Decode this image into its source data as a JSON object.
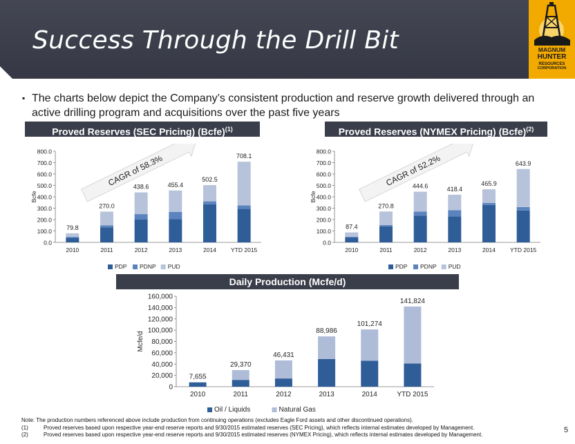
{
  "header": {
    "title": "Success Through the Drill Bit",
    "logo": {
      "line1": "MAGNUM",
      "line2": "HUNTER",
      "line3": "RESOURCES",
      "line4": "CORPORATION"
    }
  },
  "bullet": {
    "icon": "square-bullet-icon",
    "text": "The charts below depict the Company’s consistent production and reserve growth delivered through an active drilling program and acquisitions over the past five years"
  },
  "colors": {
    "band": "#3a3d4a",
    "pdp": "#2f5d98",
    "pdnp": "#5b84bf",
    "pud": "#b7c3da",
    "oil": "#2f5d98",
    "gas": "#aebcd8",
    "logo": "#f2a900"
  },
  "chart_data": [
    {
      "type": "bar",
      "stacked": true,
      "title": "Proved Reserves (SEC Pricing) (Bcfe)",
      "title_sup": "(1)",
      "categories": [
        "2010",
        "2011",
        "2012",
        "2013",
        "2014",
        "YTD 2015"
      ],
      "series": [
        {
          "name": "PDP",
          "values": [
            40,
            130,
            200,
            205,
            335,
            295
          ]
        },
        {
          "name": "PDNP",
          "values": [
            8,
            20,
            48,
            62,
            25,
            30
          ]
        },
        {
          "name": "PUD",
          "values": [
            31.8,
            120,
            190.6,
            188.4,
            142.5,
            383.1
          ]
        }
      ],
      "totals": [
        "79.8",
        "270.0",
        "438.6",
        "455.4",
        "502.5",
        "708.1"
      ],
      "ylabel": "Bcfe",
      "ylim": [
        0,
        800
      ],
      "yticks": [
        "0.0",
        "100.0",
        "200.0",
        "300.0",
        "400.0",
        "500.0",
        "600.0",
        "700.0",
        "800.0"
      ],
      "annotation": "CAGR of 58.3%",
      "legend": [
        "PDP",
        "PDNP",
        "PUD"
      ]
    },
    {
      "type": "bar",
      "stacked": true,
      "title": "Proved Reserves  (NYMEX Pricing) (Bcfe)",
      "title_sup": "(2)",
      "categories": [
        "2010",
        "2011",
        "2012",
        "2013",
        "2014",
        "YTD 2015"
      ],
      "series": [
        {
          "name": "PDP",
          "values": [
            42,
            140,
            235,
            228,
            328,
            280
          ]
        },
        {
          "name": "PDNP",
          "values": [
            7,
            12,
            35,
            55,
            18,
            30
          ]
        },
        {
          "name": "PUD",
          "values": [
            38.4,
            118.8,
            174.6,
            135.4,
            119.9,
            333.9
          ]
        }
      ],
      "totals": [
        "87.4",
        "270.8",
        "444.6",
        "418.4",
        "465.9",
        "643.9"
      ],
      "ylabel": "Bcfe",
      "ylim": [
        0,
        800
      ],
      "yticks": [
        "0.0",
        "100.0",
        "200.0",
        "300.0",
        "400.0",
        "500.0",
        "600.0",
        "700.0",
        "800.0"
      ],
      "annotation": "CAGR of 52.2%",
      "legend": [
        "PDP",
        "PDNP",
        "PUD"
      ]
    },
    {
      "type": "bar",
      "stacked": true,
      "title": "Daily Production (Mcfe/d)",
      "categories": [
        "2010",
        "2011",
        "2012",
        "2013",
        "2014",
        "YTD 2015"
      ],
      "series": [
        {
          "name": "Oil / Liquids",
          "values": [
            7655,
            12000,
            14500,
            49000,
            46000,
            41000
          ]
        },
        {
          "name": "Natural Gas",
          "values": [
            0,
            17370,
            31931,
            39986,
            55274,
            100824
          ]
        }
      ],
      "totals": [
        "7,655",
        "29,370",
        "46,431",
        "88,986",
        "101,274",
        "141,824"
      ],
      "ylabel": "Mcfe/d",
      "ylim": [
        0,
        160000
      ],
      "yticks": [
        "0",
        "20,000",
        "40,000",
        "60,000",
        "80,000",
        "100,000",
        "120,000",
        "140,000",
        "160,000"
      ],
      "legend": [
        "Oil / Liquids",
        "Natural Gas"
      ]
    }
  ],
  "footnotes": {
    "note": "Note: The production numbers referenced above include production from continuing operations (excludes Eagle Ford assets and other discontinued operations).",
    "fn1_num": "(1)",
    "fn1": "Proved reserves based upon respective year-end reserve reports and 9/30/2015 estimated reserves (SEC Pricing), which reflects internal estimates developed by Management.",
    "fn2_num": "(2)",
    "fn2": "Proved reserves based upon respective year-end reserve reports and 9/30/2015 estimated reserves (NYMEX Pricing), which reflects internal estimates developed by Management."
  },
  "page_number": "5"
}
